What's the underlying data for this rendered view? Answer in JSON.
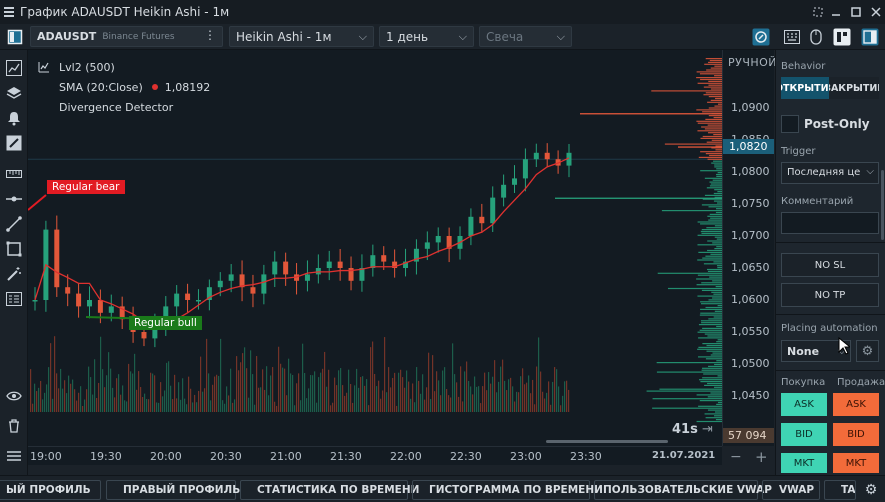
{
  "window": {
    "title": "График ADAUSDT Heikin Ashi - 1м"
  },
  "toolbar": {
    "symbol": "ADAUSDT",
    "exchange": "Binance Futures",
    "chart_type": "Heikin Ashi - 1м",
    "period": "1 день",
    "candle_placeholder": "Свеча"
  },
  "chart": {
    "indicators": [
      "Lvl2 (500)",
      "SMA (20:Close)",
      "Divergence Detector"
    ],
    "sma_value": "1,08192",
    "mode_label": "РУЧНОЙ",
    "annotation_bear": "Regular bear",
    "annotation_bull": "Regular bull",
    "timer": "41s",
    "current_price": "1,0820",
    "volume_value": "57 094",
    "date_label": "21.07.2021",
    "colors": {
      "up": "#26a17b",
      "down": "#e2573a",
      "sma": "#e0312f",
      "bear_label": "#e21b23",
      "bull_label": "#1a7a1a",
      "current_price_bg": "#1b5f7a"
    }
  },
  "chart_data": {
    "type": "candlestick",
    "price_ticks": [
      "1,0900",
      "1,0850",
      "1,0800",
      "1,0750",
      "1,0700",
      "1,0650",
      "1,0600",
      "1,0550",
      "1,0500",
      "1,0450"
    ],
    "time_ticks": [
      "19:00",
      "19:30",
      "20:00",
      "20:30",
      "21:00",
      "21:30",
      "22:00",
      "22:30",
      "23:00",
      "23:30"
    ],
    "ylim": [
      1.0425,
      1.0925
    ],
    "close_series": [
      1.06,
      1.071,
      1.062,
      1.061,
      1.059,
      1.06,
      1.058,
      1.059,
      1.057,
      1.055,
      1.054,
      1.056,
      1.059,
      1.061,
      1.06,
      1.06,
      1.062,
      1.063,
      1.064,
      1.062,
      1.061,
      1.064,
      1.066,
      1.064,
      1.063,
      1.064,
      1.065,
      1.066,
      1.065,
      1.063,
      1.065,
      1.067,
      1.066,
      1.065,
      1.066,
      1.068,
      1.069,
      1.07,
      1.068,
      1.07,
      1.073,
      1.072,
      1.076,
      1.078,
      1.079,
      1.082,
      1.083,
      1.082,
      1.081,
      1.083
    ]
  },
  "left_tools": [
    "panel-icon",
    "layers-icon",
    "bell-icon",
    "brush-icon",
    "ruler-icon",
    "horizontal-line-icon",
    "trend-line-icon",
    "rectangle-icon",
    "magic-icon",
    "template-icon",
    "eye-icon",
    "trash-icon",
    "menu-icon"
  ],
  "right_panel": {
    "behavior_label": "Behavior",
    "open_tab": "ОТКРЫТИЕ",
    "close_tab": "ЗАКРЫТИЕ",
    "post_only": "Post-Only",
    "trigger_label": "Trigger",
    "trigger_value": "Последняя це",
    "comment_label": "Комментарий",
    "no_sl": "NO SL",
    "no_tp": "NO TP",
    "placing_label": "Placing automation",
    "placing_value": "None",
    "buy_label": "Покупка",
    "sell_label": "Продажа",
    "ask": "ASK",
    "bid": "BID",
    "mkt": "MKT",
    "buy_color": "#3fd4b4",
    "sell_color": "#f26b3a"
  },
  "bottom_tabs": [
    "ЫЙ ПРОФИЛЬ",
    "ПРАВЫЙ ПРОФИЛЬ",
    "СТАТИСТИКА ПО ВРЕМЕНИ",
    "ГИСТОГРАММА ПО ВРЕМЕНИ",
    "ПОЛЬЗОВАТЕЛЬСКИЕ VWAP",
    "VWAP",
    "TA"
  ]
}
